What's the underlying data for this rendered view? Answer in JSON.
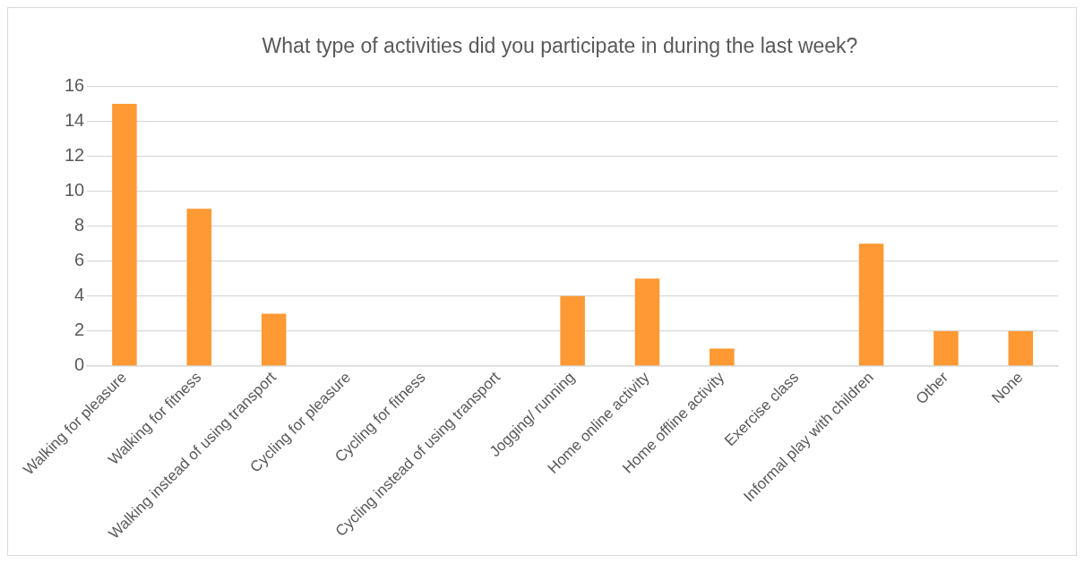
{
  "chart_data": {
    "type": "bar",
    "title": "What type of activities did you participate in during the last week?",
    "categories": [
      "Walking for pleasure",
      "Walking for fitness",
      "Walking instead of using transport",
      "Cycling for pleasure",
      "Cycling for fitness",
      "Cycling instead of using transport",
      "Jogging/ running",
      "Home online activity",
      "Home offline activity",
      "Exercise class",
      "Informal play with children",
      "Other",
      "None"
    ],
    "values": [
      15,
      9,
      3,
      0,
      0,
      0,
      4,
      5,
      1,
      0,
      7,
      2,
      2
    ],
    "color": "#ff9933",
    "ylim": [
      0,
      16
    ],
    "yticks": [
      0,
      2,
      4,
      6,
      8,
      10,
      12,
      14,
      16
    ],
    "grid": "y",
    "legend": false
  }
}
